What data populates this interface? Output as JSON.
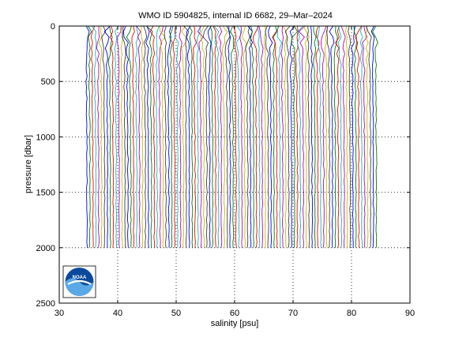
{
  "chart_data": {
    "type": "line",
    "title": "WMO ID 5904825, internal ID 6682, 29–Mar–2024",
    "xlabel": "salinity [psu]",
    "ylabel": "pressure [dbar]",
    "xlim": [
      30,
      90
    ],
    "ylim": [
      0,
      2500
    ],
    "y_reversed": true,
    "xticks": [
      30,
      40,
      50,
      60,
      70,
      80,
      90
    ],
    "yticks": [
      0,
      500,
      1000,
      1500,
      2000,
      2500
    ],
    "grid": "dotted",
    "profile_offset_step": 0.5,
    "profile_count": 100,
    "first_profile_base_salinity": 34.5,
    "max_pressure": 2000,
    "profile_colors": [
      "#0000ff",
      "#008000",
      "#ff0000",
      "#00bfbf",
      "#bf00bf",
      "#bfbf00",
      "#404040"
    ]
  },
  "logo": {
    "text": "NOAA"
  }
}
